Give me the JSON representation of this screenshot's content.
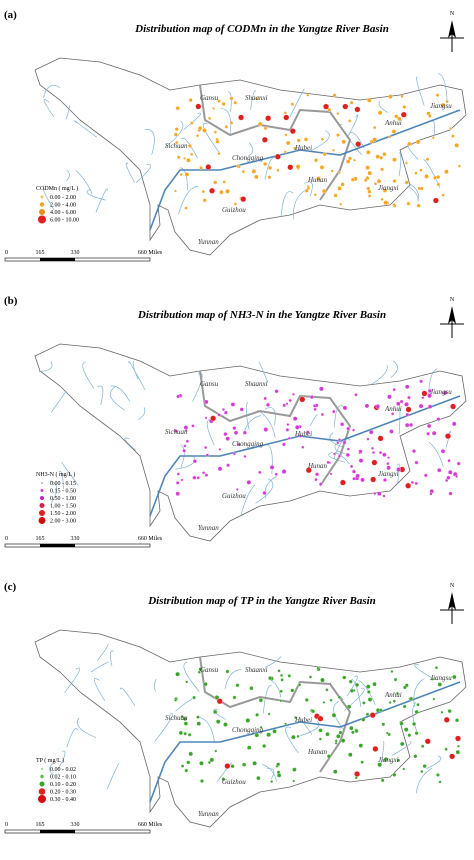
{
  "panels": [
    {
      "label": "(a)",
      "title": "Distribution map of CODMn  in the Yangtze River Basin",
      "legend_title": "CODMn ( mg/L )",
      "legend": [
        "0.00 - 2.00",
        "2.00 - 4.00",
        "4.00 - 6.00",
        "6.00 - 10.00"
      ],
      "provinces": [
        "Gansu",
        "Shaanxi",
        "Hubei",
        "Anhui",
        "Jiangsu",
        "Chongqing",
        "Sichuan",
        "Hunan",
        "Jiangxi",
        "Guizhou",
        "Yunnan"
      ],
      "scale": [
        "0",
        "165",
        "330",
        "660 Miles"
      ],
      "north": "N"
    },
    {
      "label": "(b)",
      "title": "Distribution map of NH3-N  in the Yangtze River Basin",
      "legend_title": "NH3-N ( mg/L )",
      "legend": [
        "0.00 - 0.15",
        "0.15 - 0.50",
        "0.50 - 1.00",
        "1.00 - 1.50",
        "1.50 - 2.00",
        "2.00 - 3.00"
      ],
      "provinces": [
        "Gansu",
        "Shaanxi",
        "Hubei",
        "Anhui",
        "Jiangsu",
        "Chongqing",
        "Sichuan",
        "Hunan",
        "Jiangxi",
        "Guizhou",
        "Yunnan"
      ],
      "scale": [
        "0",
        "165",
        "330",
        "660 Miles"
      ],
      "north": "N"
    },
    {
      "label": "(c)",
      "title": "Distribution map of TP  in the Yangtze River Basin",
      "legend_title": "TP ( mg/L )",
      "legend": [
        "0.00 - 0.02",
        "0.02 - 0.10",
        "0.10 - 0.20",
        "0.20 - 0.30",
        "0.30 - 0.40"
      ],
      "provinces": [
        "Gansu",
        "Shaanxi",
        "Hubei",
        "Anhui",
        "Jiangsu",
        "Chongqing",
        "Sichuan",
        "Hunan",
        "Jiangxi",
        "Guizhou",
        "Yunnan"
      ],
      "scale": [
        "0",
        "165",
        "330",
        "660 Miles"
      ],
      "north": "N"
    }
  ]
}
